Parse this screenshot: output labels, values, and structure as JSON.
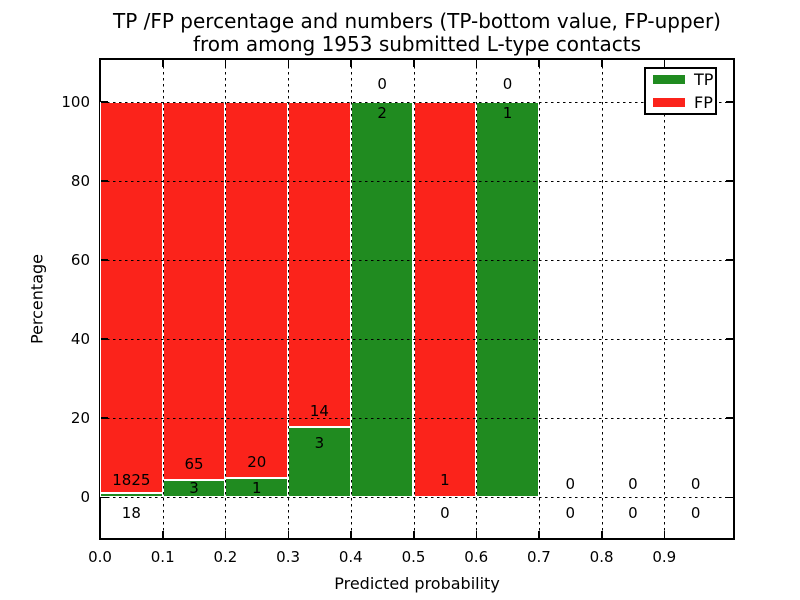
{
  "title": {
    "line1": "TP /FP percentage and numbers (TP-bottom value, FP-upper)",
    "line2": "from among 1953 submitted L-type contacts"
  },
  "axes": {
    "xlabel": "Predicted probability",
    "ylabel": "Percentage",
    "xtick_labels": [
      "0.0",
      "0.1",
      "0.2",
      "0.3",
      "0.4",
      "0.5",
      "0.6",
      "0.7",
      "0.8",
      "0.9"
    ],
    "ytick_labels": [
      "0",
      "20",
      "40",
      "60",
      "80",
      "100"
    ]
  },
  "legend": {
    "items": [
      {
        "label": "TP",
        "color": "#208b20"
      },
      {
        "label": "FP",
        "color": "#fb231b"
      }
    ]
  },
  "colors": {
    "tp": "#208b20",
    "fp": "#fb231b",
    "bar_edge": "#ffffff",
    "grid": "#000000",
    "axis": "#000000",
    "background": "#ffffff"
  },
  "chart_data": {
    "type": "bar",
    "stacked": true,
    "units": "percent",
    "title": "TP /FP percentage and numbers (TP-bottom value, FP-upper) from among 1953 submitted L-type contacts",
    "xlabel": "Predicted probability",
    "ylabel": "Percentage",
    "xlim": [
      0,
      1.0
    ],
    "ylim": [
      -10,
      110
    ],
    "grid": true,
    "legend_position": "upper right",
    "bin_width": 0.1,
    "total_contacts": 1953,
    "series": [
      {
        "name": "TP",
        "color": "#208b20",
        "position": "bottom"
      },
      {
        "name": "FP",
        "color": "#fb231b",
        "position": "top"
      }
    ],
    "bins": [
      {
        "range": [
          0.0,
          0.1
        ],
        "tp_count": 18,
        "fp_count": 1825,
        "tp_pct": 0.98,
        "fp_pct": 99.02
      },
      {
        "range": [
          0.1,
          0.2
        ],
        "tp_count": 3,
        "fp_count": 65,
        "tp_pct": 4.41,
        "fp_pct": 95.59
      },
      {
        "range": [
          0.2,
          0.3
        ],
        "tp_count": 1,
        "fp_count": 20,
        "tp_pct": 4.76,
        "fp_pct": 95.24
      },
      {
        "range": [
          0.3,
          0.4
        ],
        "tp_count": 3,
        "fp_count": 14,
        "tp_pct": 17.65,
        "fp_pct": 82.35
      },
      {
        "range": [
          0.4,
          0.5
        ],
        "tp_count": 2,
        "fp_count": 0,
        "tp_pct": 100,
        "fp_pct": 0
      },
      {
        "range": [
          0.5,
          0.6
        ],
        "tp_count": 0,
        "fp_count": 1,
        "tp_pct": 0,
        "fp_pct": 100
      },
      {
        "range": [
          0.6,
          0.7
        ],
        "tp_count": 1,
        "fp_count": 0,
        "tp_pct": 100,
        "fp_pct": 0
      },
      {
        "range": [
          0.7,
          0.8
        ],
        "tp_count": 0,
        "fp_count": 0,
        "tp_pct": null,
        "fp_pct": null
      },
      {
        "range": [
          0.8,
          0.9
        ],
        "tp_count": 0,
        "fp_count": 0,
        "tp_pct": null,
        "fp_pct": null
      },
      {
        "range": [
          0.9,
          1.0
        ],
        "tp_count": 0,
        "fp_count": 0,
        "tp_pct": null,
        "fp_pct": null
      }
    ]
  }
}
